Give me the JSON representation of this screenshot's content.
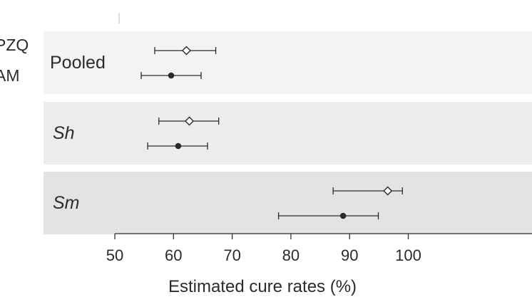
{
  "chart_data": {
    "type": "forest",
    "xlabel": "Estimated cure rates (%)",
    "ticks": [
      50,
      60,
      70,
      80,
      90,
      100
    ],
    "tick_labels": [
      "50",
      "60",
      "70",
      "80",
      "90",
      "100"
    ],
    "series": [
      {
        "name": "PZQ",
        "marker": "open-diamond"
      },
      {
        "name": "AM",
        "marker": "filled-circle"
      }
    ],
    "groups": [
      {
        "label": "Pooled",
        "italic": false,
        "background": "#f3f3f3",
        "estimates": [
          {
            "series": "PZQ",
            "value": 62.2,
            "lower": 56.8,
            "upper": 67.2
          },
          {
            "series": "AM",
            "value": 59.6,
            "lower": 54.5,
            "upper": 64.7
          }
        ]
      },
      {
        "label": "Sh",
        "italic": true,
        "background": "#ececec",
        "estimates": [
          {
            "series": "PZQ",
            "value": 62.7,
            "lower": 57.5,
            "upper": 67.7
          },
          {
            "series": "AM",
            "value": 60.8,
            "lower": 55.6,
            "upper": 65.8
          }
        ]
      },
      {
        "label": "Sm",
        "italic": true,
        "background": "#e3e3e3",
        "estimates": [
          {
            "series": "PZQ",
            "value": 96.5,
            "lower": 87.2,
            "upper": 99.0
          },
          {
            "series": "AM",
            "value": 88.9,
            "lower": 77.9,
            "upper": 94.9
          }
        ]
      }
    ]
  },
  "colors": {
    "ink": "#2b2b2b",
    "axis": "#333333"
  }
}
